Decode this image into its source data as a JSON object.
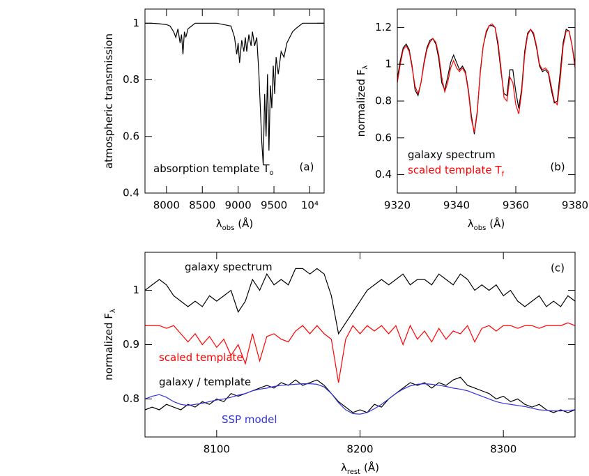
{
  "chart_data": [
    {
      "type": "line",
      "panel_label": "(a)",
      "xlabel": {
        "text": "λ",
        "sub": "obs",
        "unit": "(Å)"
      },
      "ylabel": {
        "text": "atmospheric transmission"
      },
      "annotation": {
        "text": "absorption template T",
        "sub": "o"
      },
      "xlim": [
        7700,
        10200
      ],
      "ylim": [
        0.4,
        1.05
      ],
      "xticks": [
        8000,
        8500,
        9000,
        9500,
        {
          "value": 10000,
          "label": "10⁴"
        }
      ],
      "yticks": [
        0.4,
        0.6,
        0.8,
        1
      ],
      "x": [
        7700,
        7800,
        7900,
        8000,
        8050,
        8100,
        8130,
        8160,
        8190,
        8210,
        8230,
        8250,
        8270,
        8300,
        8350,
        8400,
        8500,
        8600,
        8700,
        8800,
        8900,
        8950,
        8980,
        9000,
        9020,
        9050,
        9080,
        9100,
        9120,
        9150,
        9180,
        9200,
        9230,
        9260,
        9290,
        9310,
        9330,
        9350,
        9370,
        9390,
        9410,
        9430,
        9450,
        9470,
        9490,
        9510,
        9530,
        9560,
        9600,
        9640,
        9680,
        9720,
        9760,
        9800,
        9850,
        9900,
        10000,
        10100,
        10200
      ],
      "series": [
        {
          "color": "#000000",
          "values": [
            1.0,
            1.0,
            0.998,
            0.995,
            0.99,
            0.97,
            0.95,
            0.98,
            0.93,
            0.96,
            0.89,
            0.97,
            0.95,
            0.98,
            0.99,
            1.0,
            1.0,
            1.0,
            1.0,
            0.995,
            0.99,
            0.95,
            0.89,
            0.93,
            0.86,
            0.94,
            0.9,
            0.95,
            0.9,
            0.96,
            0.92,
            0.97,
            0.92,
            0.95,
            0.82,
            0.7,
            0.58,
            0.5,
            0.75,
            0.6,
            0.82,
            0.55,
            0.78,
            0.7,
            0.85,
            0.75,
            0.88,
            0.82,
            0.9,
            0.88,
            0.93,
            0.95,
            0.97,
            0.98,
            0.99,
            1.0,
            1.0,
            1.0,
            1.0
          ]
        }
      ]
    },
    {
      "type": "line",
      "panel_label": "(b)",
      "xlabel": {
        "text": "λ",
        "sub": "obs",
        "unit": "(Å)"
      },
      "ylabel": {
        "text": "normalized F",
        "sub": "λ"
      },
      "xlim": [
        9320,
        9380
      ],
      "ylim": [
        0.3,
        1.3
      ],
      "xticks": [
        9320,
        9340,
        9360,
        9380
      ],
      "yticks": [
        0.4,
        0.6,
        0.8,
        1,
        1.2
      ],
      "x": [
        9320,
        9321,
        9322,
        9323,
        9324,
        9325,
        9326,
        9327,
        9328,
        9329,
        9330,
        9331,
        9332,
        9333,
        9334,
        9335,
        9336,
        9337,
        9338,
        9339,
        9340,
        9341,
        9342,
        9343,
        9344,
        9345,
        9346,
        9347,
        9348,
        9349,
        9350,
        9351,
        9352,
        9353,
        9354,
        9355,
        9356,
        9357,
        9358,
        9359,
        9360,
        9361,
        9362,
        9363,
        9364,
        9365,
        9366,
        9367,
        9368,
        9369,
        9370,
        9371,
        9372,
        9373,
        9374,
        9375,
        9376,
        9377,
        9378,
        9379,
        9380
      ],
      "series": [
        {
          "name": "galaxy spectrum",
          "color": "#000000",
          "values": [
            0.92,
            1.02,
            1.09,
            1.11,
            1.08,
            0.99,
            0.86,
            0.83,
            0.9,
            1.01,
            1.09,
            1.13,
            1.14,
            1.11,
            1.03,
            0.9,
            0.86,
            0.93,
            1.01,
            1.05,
            1.01,
            0.97,
            0.99,
            0.96,
            0.86,
            0.72,
            0.62,
            0.74,
            0.96,
            1.1,
            1.17,
            1.21,
            1.21,
            1.2,
            1.1,
            0.96,
            0.84,
            0.83,
            0.97,
            0.97,
            0.85,
            0.76,
            0.87,
            1.07,
            1.17,
            1.19,
            1.16,
            1.09,
            0.99,
            0.96,
            0.97,
            0.95,
            0.86,
            0.79,
            0.8,
            0.96,
            1.12,
            1.19,
            1.18,
            1.1,
            1.0
          ]
        },
        {
          "name": "scaled template T",
          "name_sub": "f",
          "color": "#ff0000",
          "values": [
            0.9,
            1.0,
            1.08,
            1.1,
            1.07,
            0.98,
            0.88,
            0.84,
            0.9,
            1.0,
            1.08,
            1.12,
            1.14,
            1.12,
            1.05,
            0.93,
            0.85,
            0.9,
            0.98,
            1.02,
            0.98,
            0.96,
            0.98,
            0.95,
            0.85,
            0.7,
            0.63,
            0.75,
            0.95,
            1.1,
            1.18,
            1.21,
            1.22,
            1.2,
            1.12,
            0.98,
            0.82,
            0.8,
            0.93,
            0.9,
            0.78,
            0.73,
            0.85,
            1.05,
            1.16,
            1.19,
            1.17,
            1.1,
            1.0,
            0.97,
            0.98,
            0.96,
            0.88,
            0.8,
            0.78,
            0.92,
            1.1,
            1.18,
            1.18,
            1.1,
            0.98
          ]
        }
      ]
    },
    {
      "type": "line",
      "panel_label": "(c)",
      "xlabel": {
        "text": "λ",
        "sub": "rest",
        "unit": "(Å)"
      },
      "ylabel": {
        "text": "normalized F",
        "sub": "λ"
      },
      "xlim": [
        8050,
        8350
      ],
      "ylim": [
        0.73,
        1.07
      ],
      "xticks": [
        8100,
        8200,
        8300
      ],
      "yticks": [
        0.8,
        0.9,
        1
      ],
      "x": [
        8050,
        8055,
        8060,
        8065,
        8070,
        8075,
        8080,
        8085,
        8090,
        8095,
        8100,
        8105,
        8110,
        8115,
        8120,
        8125,
        8130,
        8135,
        8140,
        8145,
        8150,
        8155,
        8160,
        8165,
        8170,
        8175,
        8180,
        8185,
        8190,
        8195,
        8200,
        8205,
        8210,
        8215,
        8220,
        8225,
        8230,
        8235,
        8240,
        8245,
        8250,
        8255,
        8260,
        8265,
        8270,
        8275,
        8280,
        8285,
        8290,
        8295,
        8300,
        8305,
        8310,
        8315,
        8320,
        8325,
        8330,
        8335,
        8340,
        8345,
        8350
      ],
      "series": [
        {
          "name": "galaxy spectrum",
          "color": "#000000",
          "values": [
            1.0,
            1.01,
            1.02,
            1.01,
            0.99,
            0.98,
            0.97,
            0.98,
            0.97,
            0.99,
            0.98,
            0.99,
            1.0,
            0.96,
            0.98,
            1.02,
            1.0,
            1.03,
            1.01,
            1.02,
            1.01,
            1.04,
            1.04,
            1.03,
            1.04,
            1.03,
            0.99,
            0.92,
            0.94,
            0.96,
            0.98,
            1.0,
            1.01,
            1.02,
            1.01,
            1.02,
            1.03,
            1.01,
            1.02,
            1.02,
            1.01,
            1.03,
            1.02,
            1.01,
            1.03,
            1.02,
            1.0,
            1.01,
            1.0,
            1.01,
            0.99,
            1.0,
            0.98,
            0.97,
            0.98,
            0.99,
            0.97,
            0.98,
            0.97,
            0.99,
            0.98
          ]
        },
        {
          "name": "scaled template",
          "color": "#ff0000",
          "values": [
            0.935,
            0.935,
            0.935,
            0.93,
            0.935,
            0.92,
            0.905,
            0.92,
            0.9,
            0.915,
            0.895,
            0.91,
            0.88,
            0.9,
            0.865,
            0.92,
            0.87,
            0.915,
            0.92,
            0.91,
            0.905,
            0.925,
            0.935,
            0.92,
            0.935,
            0.92,
            0.91,
            0.83,
            0.91,
            0.935,
            0.92,
            0.935,
            0.925,
            0.935,
            0.92,
            0.935,
            0.9,
            0.935,
            0.91,
            0.925,
            0.905,
            0.93,
            0.91,
            0.925,
            0.92,
            0.935,
            0.905,
            0.93,
            0.935,
            0.925,
            0.935,
            0.935,
            0.93,
            0.935,
            0.935,
            0.93,
            0.935,
            0.935,
            0.935,
            0.94,
            0.935
          ]
        },
        {
          "name": "galaxy / template",
          "color": "#000000",
          "values": [
            0.78,
            0.785,
            0.78,
            0.79,
            0.785,
            0.78,
            0.79,
            0.785,
            0.795,
            0.79,
            0.8,
            0.795,
            0.81,
            0.805,
            0.81,
            0.815,
            0.82,
            0.825,
            0.82,
            0.83,
            0.825,
            0.835,
            0.825,
            0.83,
            0.835,
            0.825,
            0.81,
            0.795,
            0.785,
            0.775,
            0.78,
            0.775,
            0.79,
            0.785,
            0.8,
            0.81,
            0.82,
            0.83,
            0.825,
            0.83,
            0.82,
            0.83,
            0.825,
            0.835,
            0.84,
            0.825,
            0.82,
            0.815,
            0.81,
            0.8,
            0.805,
            0.795,
            0.8,
            0.79,
            0.785,
            0.79,
            0.78,
            0.775,
            0.78,
            0.775,
            0.78
          ]
        },
        {
          "name": "SSP model",
          "color": "#3333dd",
          "values": [
            0.8,
            0.805,
            0.808,
            0.803,
            0.795,
            0.79,
            0.788,
            0.79,
            0.792,
            0.795,
            0.798,
            0.8,
            0.803,
            0.807,
            0.81,
            0.815,
            0.818,
            0.82,
            0.823,
            0.825,
            0.826,
            0.827,
            0.828,
            0.828,
            0.827,
            0.822,
            0.81,
            0.793,
            0.78,
            0.773,
            0.772,
            0.775,
            0.782,
            0.79,
            0.8,
            0.81,
            0.818,
            0.824,
            0.827,
            0.828,
            0.827,
            0.825,
            0.823,
            0.82,
            0.818,
            0.815,
            0.81,
            0.805,
            0.8,
            0.795,
            0.792,
            0.79,
            0.788,
            0.786,
            0.783,
            0.78,
            0.779,
            0.778,
            0.778,
            0.779,
            0.78
          ]
        }
      ]
    }
  ]
}
